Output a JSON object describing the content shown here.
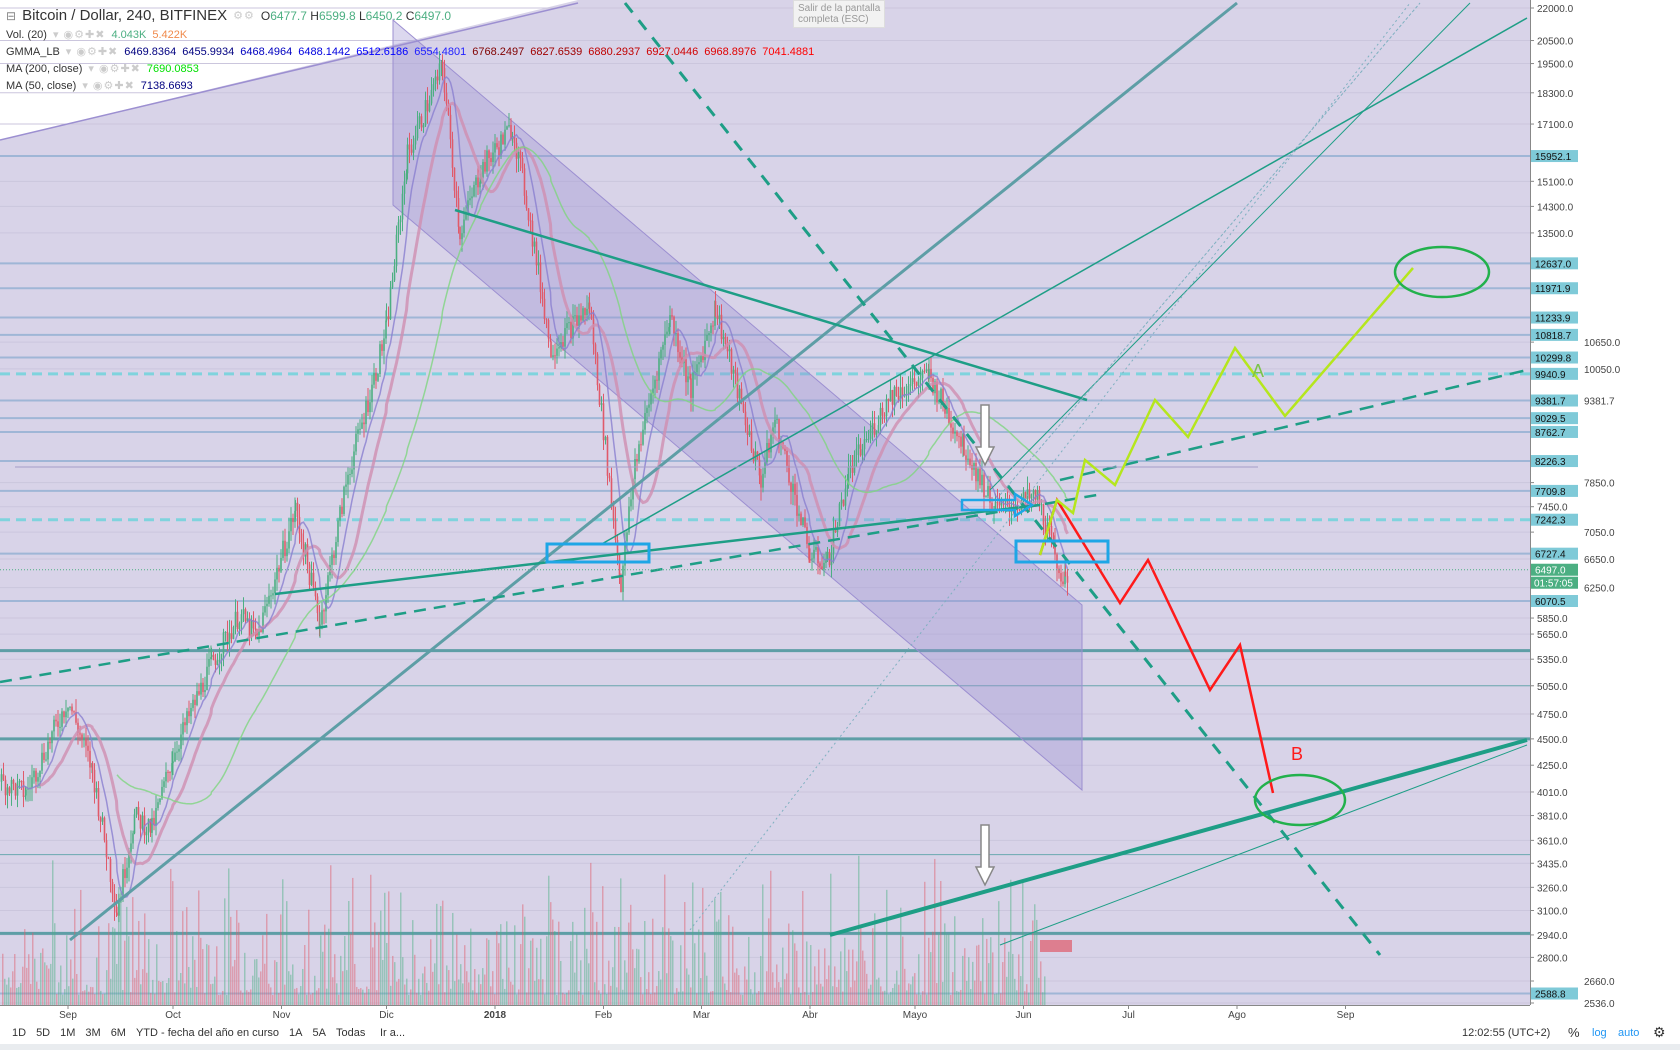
{
  "header": {
    "symbol": "Bitcoin / Dollar, 240, BITFINEX",
    "o_label": "O",
    "o": "6477.7",
    "h_label": "H",
    "h": "6599.8",
    "l_label": "L",
    "l": "6450.2",
    "c_label": "C",
    "c": "6497.0"
  },
  "indicators": [
    {
      "name": "Vol. (20)",
      "values": [
        "4.043K",
        "5.422K"
      ],
      "colors": [
        "#4caf82",
        "#f08a4b"
      ]
    },
    {
      "name": "GMMA_LB",
      "values": [
        "6469.8364",
        "6455.9934",
        "6468.4964",
        "6488.1442",
        "6512.6186",
        "6554.4801",
        "6768.2497",
        "6827.6539",
        "6880.2937",
        "6927.0446",
        "6968.8976",
        "7041.4881"
      ],
      "colors": [
        "#000080",
        "#000080",
        "#0000c0",
        "#0000e0",
        "#0000ff",
        "#2020ff",
        "#800000",
        "#a00000",
        "#c00000",
        "#d00000",
        "#e00000",
        "#ff0000"
      ]
    },
    {
      "name": "MA (200, close)",
      "values": [
        "7690.0853"
      ],
      "colors": [
        "#00e000"
      ]
    },
    {
      "name": "MA (50, close)",
      "values": [
        "7138.6693"
      ],
      "colors": [
        "#000080"
      ]
    }
  ],
  "tooltip": {
    "line1": "Salir de la pantalla",
    "line2": "completa (ESC)"
  },
  "chart_data": {
    "type": "candlestick",
    "scale": "log",
    "ylim": [
      2536,
      22000
    ],
    "y_ticks": [
      22000,
      20500,
      19500,
      18300,
      17100,
      15100,
      14300,
      13500,
      10650,
      10050,
      9381.7,
      7850,
      7450,
      7050,
      6650,
      6250,
      5850,
      5650,
      5350,
      5050,
      4750,
      4500,
      4250,
      4010,
      3810,
      3610,
      3435,
      3260,
      3100,
      2940,
      2800,
      2660,
      2536
    ],
    "price_levels": [
      15952.1,
      12637.0,
      11971.9,
      11233.9,
      10818.7,
      10299.8,
      9940.9,
      9381.7,
      9029.5,
      8762.7,
      8226.3,
      7709.8,
      7242.3,
      6727.4,
      6070.5,
      2588.8
    ],
    "last_price": "6497.0",
    "countdown": "01:57:05",
    "x_ticks": [
      {
        "label": "Sep",
        "date": "2017-09-01"
      },
      {
        "label": "Oct",
        "date": "2017-10-01"
      },
      {
        "label": "Nov",
        "date": "2017-11-01"
      },
      {
        "label": "Dic",
        "date": "2017-12-01"
      },
      {
        "label": "2018",
        "date": "2018-01-01"
      },
      {
        "label": "Feb",
        "date": "2018-02-01"
      },
      {
        "label": "Mar",
        "date": "2018-03-01"
      },
      {
        "label": "Abr",
        "date": "2018-04-01"
      },
      {
        "label": "Mayo",
        "date": "2018-05-01"
      },
      {
        "label": "Jun",
        "date": "2018-06-01"
      },
      {
        "label": "Jul",
        "date": "2018-07-01"
      },
      {
        "label": "Ago",
        "date": "2018-08-01"
      },
      {
        "label": "Sep",
        "date": "2018-09-01"
      }
    ],
    "price_path": [
      [
        "2017-08-13",
        4100
      ],
      [
        "2017-08-20",
        4000
      ],
      [
        "2017-09-01",
        4900
      ],
      [
        "2017-09-08",
        4200
      ],
      [
        "2017-09-15",
        3100
      ],
      [
        "2017-09-20",
        3800
      ],
      [
        "2017-09-25",
        3700
      ],
      [
        "2017-10-01",
        4350
      ],
      [
        "2017-10-12",
        5300
      ],
      [
        "2017-10-20",
        5900
      ],
      [
        "2017-10-25",
        5600
      ],
      [
        "2017-11-05",
        7400
      ],
      [
        "2017-11-12",
        5800
      ],
      [
        "2017-11-20",
        8000
      ],
      [
        "2017-11-28",
        10000
      ],
      [
        "2017-12-01",
        11000
      ],
      [
        "2017-12-07",
        16000
      ],
      [
        "2017-12-17",
        19400
      ],
      [
        "2017-12-22",
        13500
      ],
      [
        "2017-12-28",
        15500
      ],
      [
        "2018-01-06",
        17000
      ],
      [
        "2018-01-10",
        14500
      ],
      [
        "2018-01-17",
        10500
      ],
      [
        "2018-01-28",
        11500
      ],
      [
        "2018-02-06",
        6300
      ],
      [
        "2018-02-10",
        8200
      ],
      [
        "2018-02-20",
        11300
      ],
      [
        "2018-02-26",
        9600
      ],
      [
        "2018-03-05",
        11500
      ],
      [
        "2018-03-18",
        7900
      ],
      [
        "2018-03-22",
        9000
      ],
      [
        "2018-04-01",
        6700
      ],
      [
        "2018-04-06",
        6600
      ],
      [
        "2018-04-12",
        8000
      ],
      [
        "2018-04-24",
        9500
      ],
      [
        "2018-05-05",
        9900
      ],
      [
        "2018-05-15",
        8500
      ],
      [
        "2018-05-24",
        7400
      ],
      [
        "2018-06-05",
        7600
      ],
      [
        "2018-06-10",
        6700
      ],
      [
        "2018-06-13",
        6300
      ],
      [
        "2018-06-14",
        6497
      ]
    ],
    "annotations": [
      "A",
      "B"
    ],
    "colors": {
      "up": "#4caf82",
      "down": "#e05a6a",
      "channel": "#9c8fd1",
      "trend": "#1e9e86",
      "projection_up": "#b5e61d",
      "projection_down": "#ff1a1a",
      "ellipse": "#22b14c",
      "box": "#1ea6e6"
    }
  },
  "bottom_bar": {
    "ranges": [
      "1D",
      "5D",
      "1M",
      "3M",
      "6M",
      "YTD - fecha del año en curso",
      "1A",
      "5A",
      "Todas"
    ],
    "goto": "Ir a...",
    "clock": "12:02:55 (UTC+2)",
    "percent": "%",
    "log": "log",
    "auto": "auto"
  }
}
